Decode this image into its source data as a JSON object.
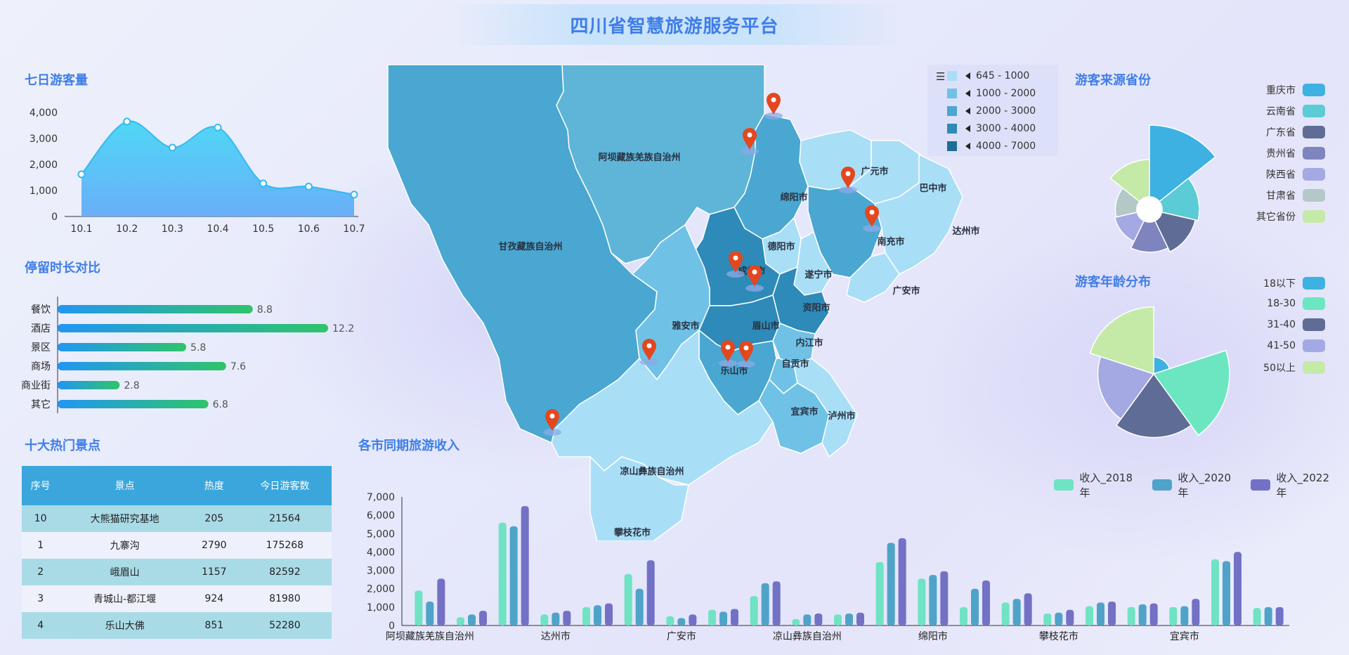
{
  "header": {
    "title": "四川省智慧旅游服务平台"
  },
  "colors": {
    "title": "#3f7ee8",
    "accent": "#3aa6dc"
  },
  "panels": {
    "seven_day": "七日游客量",
    "stay": "停留时长对比",
    "top_spots": "十大热门景点",
    "city_income": "各市同期旅游收入",
    "source_province": "游客来源省份",
    "age": "游客年龄分布"
  },
  "chart_data": [
    {
      "id": "seven_day_visitors",
      "type": "area",
      "title": "七日游客量",
      "x": [
        "10.1",
        "10.2",
        "10.3",
        "10.4",
        "10.5",
        "10.6",
        "10.7"
      ],
      "values": [
        1620,
        3650,
        2650,
        3420,
        1270,
        1150,
        840
      ],
      "ylim": [
        0,
        4000
      ],
      "yticks": [
        "0",
        "1,000",
        "2,000",
        "3,000",
        "4,000"
      ]
    },
    {
      "id": "stay_duration",
      "type": "bar",
      "orientation": "horizontal",
      "title": "停留时长对比",
      "categories": [
        "餐饮",
        "酒店",
        "景区",
        "商场",
        "商业街",
        "其它"
      ],
      "values": [
        8.8,
        12.2,
        5.8,
        7.6,
        2.8,
        6.8
      ],
      "xlim": [
        0,
        13
      ]
    },
    {
      "id": "city_income",
      "type": "bar",
      "title": "各市同期旅游收入",
      "categories": [
        "阿坝藏族羌族自治州",
        "巴中市",
        "成都市",
        "达州市",
        "德阳市",
        "甘孜藏族自治州",
        "广安市",
        "广元市",
        "乐山市",
        "凉山彝族自治州",
        "泸州市",
        "眉山市",
        "绵阳市",
        "南充市",
        "内江市",
        "攀枝花市",
        "遂宁市",
        "雅安市",
        "宜宾市",
        "资阳市",
        "自贡市"
      ],
      "visible_tick_labels": [
        "阿坝藏族羌族自治州",
        "达州市",
        "广安市",
        "凉山彝族自治州",
        "绵阳市",
        "攀枝花市",
        "宜宾市"
      ],
      "ylim": [
        0,
        7000
      ],
      "yticks": [
        "0",
        "1,000",
        "2,000",
        "3,000",
        "4,000",
        "5,000",
        "6,000",
        "7,000"
      ],
      "series": [
        {
          "name": "收入_2018年",
          "color": "#6fe3c3",
          "values": [
            1900,
            450,
            5600,
            600,
            1000,
            2800,
            500,
            850,
            1600,
            350,
            600,
            3450,
            2550,
            1000,
            1250,
            650,
            1050,
            1000,
            1000,
            3600,
            950
          ]
        },
        {
          "name": "收入_2020年",
          "color": "#4fa3c8",
          "values": [
            1300,
            600,
            5400,
            700,
            1100,
            2000,
            400,
            750,
            2300,
            600,
            650,
            4500,
            2750,
            2000,
            1450,
            700,
            1250,
            1150,
            1050,
            3500,
            1000
          ]
        },
        {
          "name": "收入_2022年",
          "color": "#7371c5",
          "values": [
            2550,
            800,
            6500,
            800,
            1200,
            3550,
            600,
            900,
            2400,
            650,
            700,
            4750,
            2950,
            2450,
            1750,
            850,
            1300,
            1200,
            1450,
            4000,
            1000
          ]
        }
      ]
    },
    {
      "id": "source_province",
      "type": "pie",
      "variant": "rose",
      "title": "游客来源省份",
      "categories": [
        "重庆市",
        "云南省",
        "广东省",
        "贵州省",
        "陕西省",
        "甘肃省",
        "其它省份"
      ],
      "values": [
        100,
        52,
        48,
        42,
        32,
        30,
        52
      ],
      "colors": [
        "#3db1e2",
        "#5bcbd5",
        "#5f6c95",
        "#7e84bd",
        "#a4a9e4",
        "#b4c8c8",
        "#c5eaa8"
      ]
    },
    {
      "id": "age_distribution",
      "type": "pie",
      "variant": "rose",
      "title": "游客年龄分布",
      "categories": [
        "18以下",
        "18-30",
        "31-40",
        "41-50",
        "50以上"
      ],
      "values": [
        15,
        68,
        57,
        50,
        60
      ],
      "colors": [
        "#3db1e2",
        "#6ce6c0",
        "#5f6c95",
        "#a4a9e4",
        "#c5eaa8"
      ]
    }
  ],
  "table": {
    "headers": [
      "序号",
      "景点",
      "热度",
      "今日游客数"
    ],
    "rows": [
      [
        "10",
        "大熊猫研究基地",
        "205",
        "21564"
      ],
      [
        "1",
        "九寨沟",
        "2790",
        "175268"
      ],
      [
        "2",
        "峨眉山",
        "1157",
        "82592"
      ],
      [
        "3",
        "青城山-都江堰",
        "924",
        "81980"
      ],
      [
        "4",
        "乐山大佛",
        "851",
        "52280"
      ]
    ]
  },
  "map": {
    "legend": [
      {
        "label": "645 - 1000",
        "color": "#a9def7"
      },
      {
        "label": "1000 - 2000",
        "color": "#6fc2e6"
      },
      {
        "label": "2000 - 3000",
        "color": "#4aa7d1"
      },
      {
        "label": "3000 - 4000",
        "color": "#2e8ab8"
      },
      {
        "label": "4000 - 7000",
        "color": "#1e6d98"
      }
    ],
    "regions": [
      "阿坝藏族羌族自治州",
      "甘孜藏族自治州",
      "凉山彝族自治州",
      "攀枝花市",
      "广元市",
      "巴中市",
      "绵阳市",
      "达州市",
      "南充市",
      "德阳市",
      "成都市",
      "遂宁市",
      "广安市",
      "资阳市",
      "雅安市",
      "眉山市",
      "内江市",
      "乐山市",
      "自贡市",
      "宜宾市",
      "泸州市"
    ]
  }
}
